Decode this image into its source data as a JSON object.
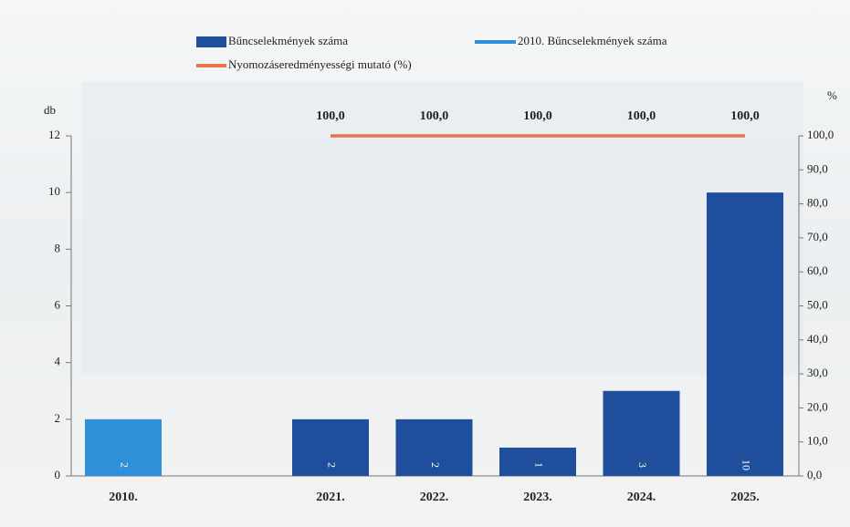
{
  "chart_data": {
    "type": "bar",
    "y_label": "db",
    "y2_label": "%",
    "categories": [
      "2010.",
      null,
      "2021.",
      "2022.",
      "2023.",
      "2024.",
      "2025."
    ],
    "ylim": [
      0,
      12
    ],
    "yticks": [
      0,
      2,
      4,
      6,
      8,
      10,
      12
    ],
    "y2lim": [
      0,
      100
    ],
    "y2ticks": [
      {
        "value": 0,
        "label": "0,0"
      },
      {
        "value": 10,
        "label": "10,0"
      },
      {
        "value": 20,
        "label": "20,0"
      },
      {
        "value": 30,
        "label": "30,0"
      },
      {
        "value": 40,
        "label": "40,0"
      },
      {
        "value": 50,
        "label": "50,0"
      },
      {
        "value": 60,
        "label": "60,0"
      },
      {
        "value": 70,
        "label": "70,0"
      },
      {
        "value": 80,
        "label": "80,0"
      },
      {
        "value": 90,
        "label": "90,0"
      },
      {
        "value": 100,
        "label": "100,0"
      }
    ],
    "series": [
      {
        "name": "Bűncselekmények száma",
        "type": "bar",
        "color": "#1f4e9c",
        "values": [
          null,
          null,
          2,
          2,
          1,
          3,
          10
        ]
      },
      {
        "name": "2010. Bűncselekmények száma",
        "type": "bar",
        "color": "#2f8fd8",
        "values": [
          2,
          null,
          null,
          null,
          null,
          null,
          null
        ]
      },
      {
        "name": "Nyomozáseredményességi mutató (%)",
        "type": "line",
        "axis": "y2",
        "color": "#e8734a",
        "values": [
          null,
          null,
          100,
          100,
          100,
          100,
          100
        ],
        "value_labels": [
          null,
          null,
          "100,0",
          "100,0",
          "100,0",
          "100,0",
          "100,0"
        ]
      }
    ]
  }
}
